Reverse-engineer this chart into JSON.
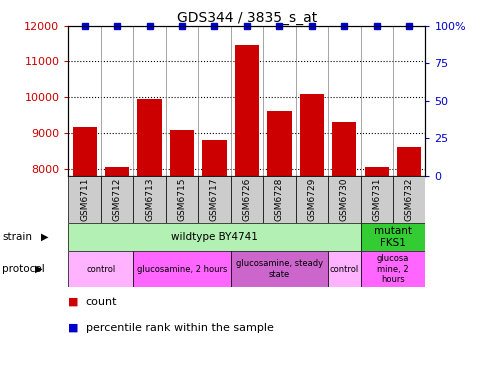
{
  "title": "GDS344 / 3835_s_at",
  "samples": [
    "GSM6711",
    "GSM6712",
    "GSM6713",
    "GSM6715",
    "GSM6717",
    "GSM6726",
    "GSM6728",
    "GSM6729",
    "GSM6730",
    "GSM6731",
    "GSM6732"
  ],
  "counts": [
    9150,
    8050,
    9950,
    9080,
    8800,
    11450,
    9620,
    10100,
    9300,
    8050,
    8600
  ],
  "percentiles": [
    100,
    100,
    100,
    100,
    100,
    100,
    100,
    100,
    100,
    100,
    100
  ],
  "bar_color": "#cc0000",
  "dot_color": "#0000cc",
  "ylim_left": [
    7800,
    12000
  ],
  "ylim_right": [
    0,
    100
  ],
  "yticks_left": [
    8000,
    9000,
    10000,
    11000,
    12000
  ],
  "yticks_right": [
    0,
    25,
    50,
    75,
    100
  ],
  "ytick_labels_right": [
    "0",
    "25",
    "50",
    "75",
    "100%"
  ],
  "grid_color": "#000000",
  "strain_row": [
    {
      "label": "wildtype BY4741",
      "start": 0,
      "end": 9,
      "color": "#b3f0b3"
    },
    {
      "label": "mutant\nFKS1",
      "start": 9,
      "end": 11,
      "color": "#33cc33"
    }
  ],
  "protocol_row": [
    {
      "label": "control",
      "start": 0,
      "end": 2,
      "color": "#ffb3ff"
    },
    {
      "label": "glucosamine, 2 hours",
      "start": 2,
      "end": 5,
      "color": "#ff66ff"
    },
    {
      "label": "glucosamine, steady\nstate",
      "start": 5,
      "end": 8,
      "color": "#cc66cc"
    },
    {
      "label": "control",
      "start": 8,
      "end": 9,
      "color": "#ffb3ff"
    },
    {
      "label": "glucosa\nmine, 2\nhours",
      "start": 9,
      "end": 11,
      "color": "#ff66ff"
    }
  ],
  "legend_count_color": "#cc0000",
  "legend_percentile_color": "#0000cc",
  "left_tick_color": "#cc0000",
  "right_tick_color": "#0000cc",
  "sample_box_color": "#cccccc",
  "fig_width": 4.89,
  "fig_height": 3.66,
  "dpi": 100
}
